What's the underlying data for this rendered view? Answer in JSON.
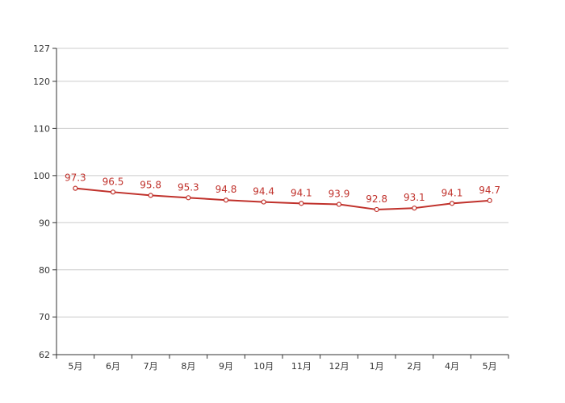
{
  "chart_data": {
    "type": "line",
    "categories": [
      "5月",
      "6月",
      "7月",
      "8月",
      "9月",
      "10月",
      "11月",
      "12月",
      "1月",
      "2月",
      "4月",
      "5月"
    ],
    "series": [
      {
        "values": [
          97.3,
          96.5,
          95.8,
          95.3,
          94.8,
          94.4,
          94.1,
          93.9,
          92.8,
          93.1,
          94.1,
          94.7
        ]
      }
    ],
    "ylim": [
      62,
      127
    ],
    "yticks": [
      62,
      70,
      80,
      90,
      100,
      110,
      120,
      127
    ],
    "grid": true,
    "legend": "none",
    "data_labels": true,
    "colors": {
      "line": "#c0312b",
      "marker_fill": "#ffffff",
      "grid": "#cccccc",
      "axis": "#333333",
      "label": "#c0312b"
    }
  }
}
